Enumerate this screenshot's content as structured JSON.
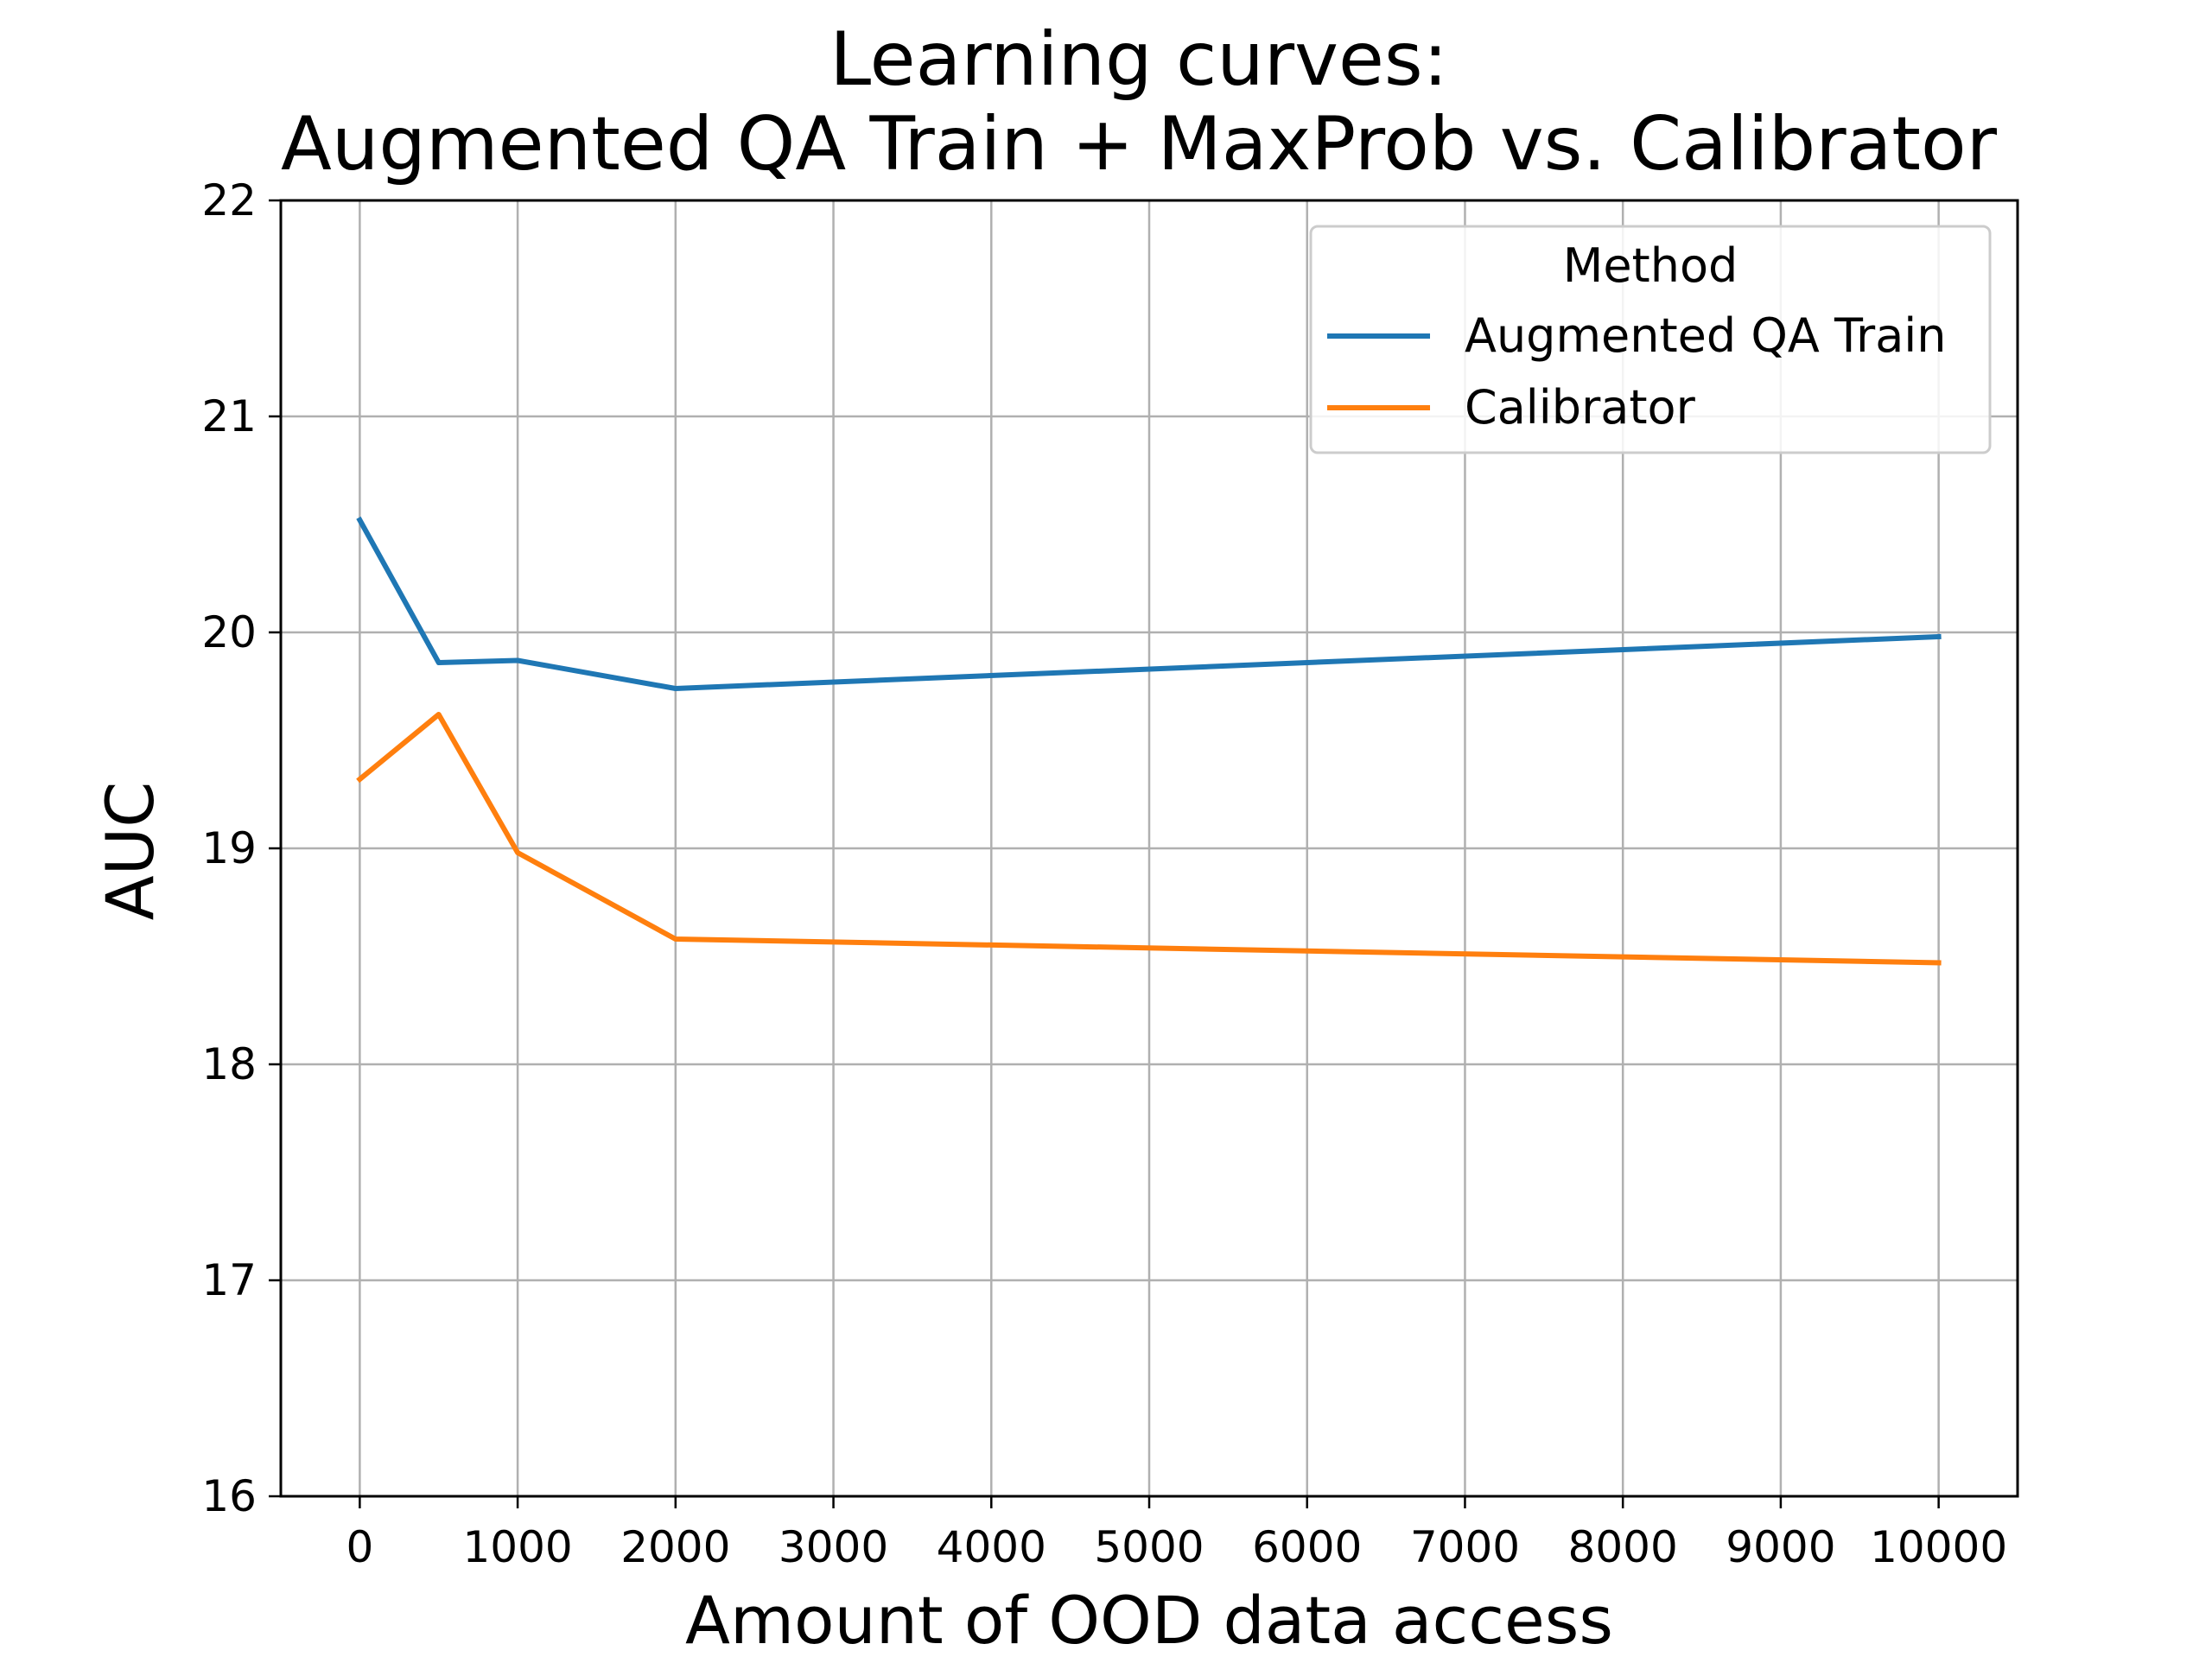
{
  "chart_data": {
    "type": "line",
    "title_lines": [
      "Learning curves:",
      "Augmented QA Train + MaxProb vs. Calibrator"
    ],
    "xlabel": "Amount of OOD data access",
    "ylabel": "AUC",
    "xlim": [
      -500,
      10500
    ],
    "ylim": [
      16,
      22
    ],
    "xticks": [
      0,
      1000,
      2000,
      3000,
      4000,
      5000,
      6000,
      7000,
      8000,
      9000,
      10000
    ],
    "yticks": [
      16,
      17,
      18,
      19,
      20,
      21,
      22
    ],
    "grid": true,
    "legend": {
      "title": "Method",
      "placement": "top-right"
    },
    "series": [
      {
        "name": "Augmented QA Train",
        "color": "#1f77b4",
        "x": [
          0,
          500,
          1000,
          2000,
          10000
        ],
        "y": [
          20.52,
          19.86,
          19.87,
          19.74,
          19.98
        ]
      },
      {
        "name": "Calibrator",
        "color": "#ff7f0e",
        "x": [
          0,
          500,
          1000,
          2000,
          10000
        ],
        "y": [
          19.32,
          19.62,
          18.98,
          18.58,
          18.47
        ]
      }
    ]
  }
}
